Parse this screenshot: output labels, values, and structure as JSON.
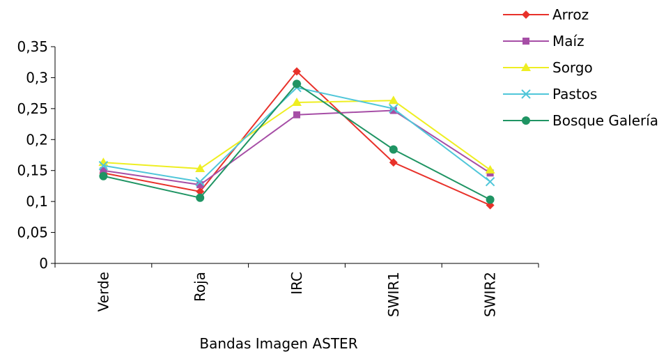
{
  "chart_data": {
    "type": "line",
    "title": "",
    "xlabel": "Bandas Imagen ASTER",
    "ylabel": "",
    "categories": [
      "Verde",
      "Roja",
      "IRC",
      "SWIR1",
      "SWIR2"
    ],
    "ylim": [
      0,
      0.35
    ],
    "y_ticks": [
      "0",
      "0,05",
      "0,1",
      "0,15",
      "0,2",
      "0,25",
      "0,3",
      "0,35"
    ],
    "grid": false,
    "legend_position": "top-right",
    "series": [
      {
        "name": "Arroz",
        "color": "#e8312a",
        "marker": "diamond",
        "values": [
          0.146,
          0.116,
          0.31,
          0.163,
          0.094
        ]
      },
      {
        "name": "Maíz",
        "color": "#a64ea6",
        "marker": "square",
        "values": [
          0.15,
          0.127,
          0.24,
          0.247,
          0.146
        ]
      },
      {
        "name": "Sorgo",
        "color": "#eeee22",
        "marker": "triangle",
        "values": [
          0.163,
          0.153,
          0.26,
          0.263,
          0.151
        ]
      },
      {
        "name": "Pastos",
        "color": "#4fc6d9",
        "marker": "x",
        "values": [
          0.158,
          0.132,
          0.284,
          0.25,
          0.132
        ]
      },
      {
        "name": "Bosque Galería",
        "color": "#1f9463",
        "marker": "circle",
        "values": [
          0.141,
          0.106,
          0.29,
          0.184,
          0.103
        ]
      }
    ]
  }
}
